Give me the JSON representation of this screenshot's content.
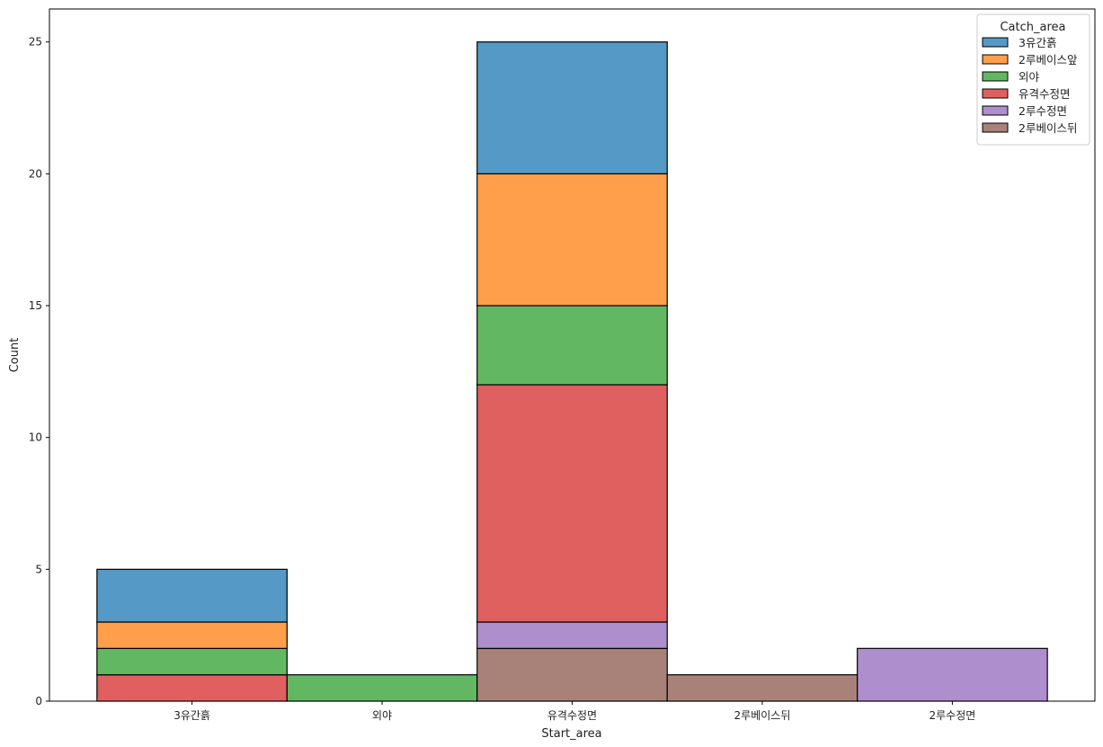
{
  "chart_data": {
    "type": "bar",
    "stacked": true,
    "xlabel": "Start_area",
    "ylabel": "Count",
    "categories": [
      "3유간흙",
      "외야",
      "유격수정면",
      "2루베이스뒤",
      "2루수정면"
    ],
    "ylim": [
      0,
      26.25
    ],
    "yticks": [
      0,
      5,
      10,
      15,
      20,
      25
    ],
    "grid": false,
    "legend": {
      "title": "Catch_area",
      "placement": "top-right"
    },
    "series": [
      {
        "name": "3유간흙",
        "color": "#5599c6",
        "values": [
          2,
          0,
          5,
          0,
          0
        ]
      },
      {
        "name": "2루베이스앞",
        "color": "#ff9f4b",
        "values": [
          1,
          0,
          5,
          0,
          0
        ]
      },
      {
        "name": "외야",
        "color": "#62b862",
        "values": [
          1,
          1,
          3,
          0,
          0
        ]
      },
      {
        "name": "유격수정면",
        "color": "#e05f5f",
        "values": [
          1,
          0,
          9,
          0,
          0
        ]
      },
      {
        "name": "2루수정면",
        "color": "#ae8ecc",
        "values": [
          0,
          0,
          1,
          0,
          2
        ]
      },
      {
        "name": "2루베이스뒤",
        "color": "#a88279",
        "values": [
          0,
          0,
          2,
          1,
          0
        ]
      }
    ],
    "series_colors_note_stack_order": "bottom-to-top: last series first"
  }
}
